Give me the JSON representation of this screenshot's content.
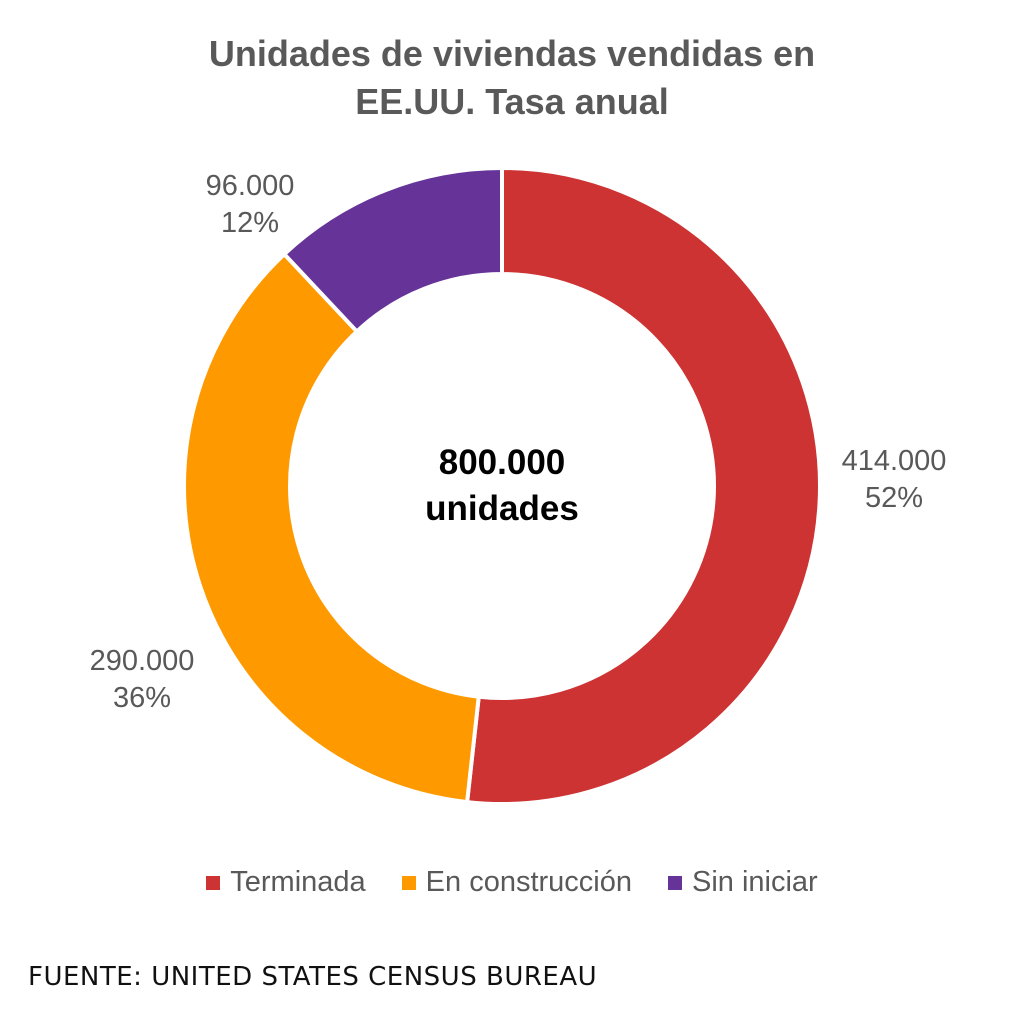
{
  "chart_data": {
    "type": "pie",
    "variant": "donut",
    "title": "Unidades de viviendas vendidas en EE.UU. Tasa anual",
    "title_lines": [
      "Unidades de viviendas vendidas en",
      "EE.UU. Tasa anual"
    ],
    "center_label_lines": [
      "800.000",
      "unidades"
    ],
    "slices": [
      {
        "label": "Terminada",
        "value": 414000,
        "value_label": "414.000",
        "percent_label": "52%",
        "color": "#cd3333"
      },
      {
        "label": "En construcción",
        "value": 290000,
        "value_label": "290.000",
        "percent_label": "36%",
        "color": "#ff9900"
      },
      {
        "label": "Sin iniciar",
        "value": 96000,
        "value_label": "96.000",
        "percent_label": "12%",
        "color": "#663399"
      }
    ],
    "legend_position": "bottom"
  },
  "source": "FUENTE: UNITED STATES CENSUS BUREAU"
}
